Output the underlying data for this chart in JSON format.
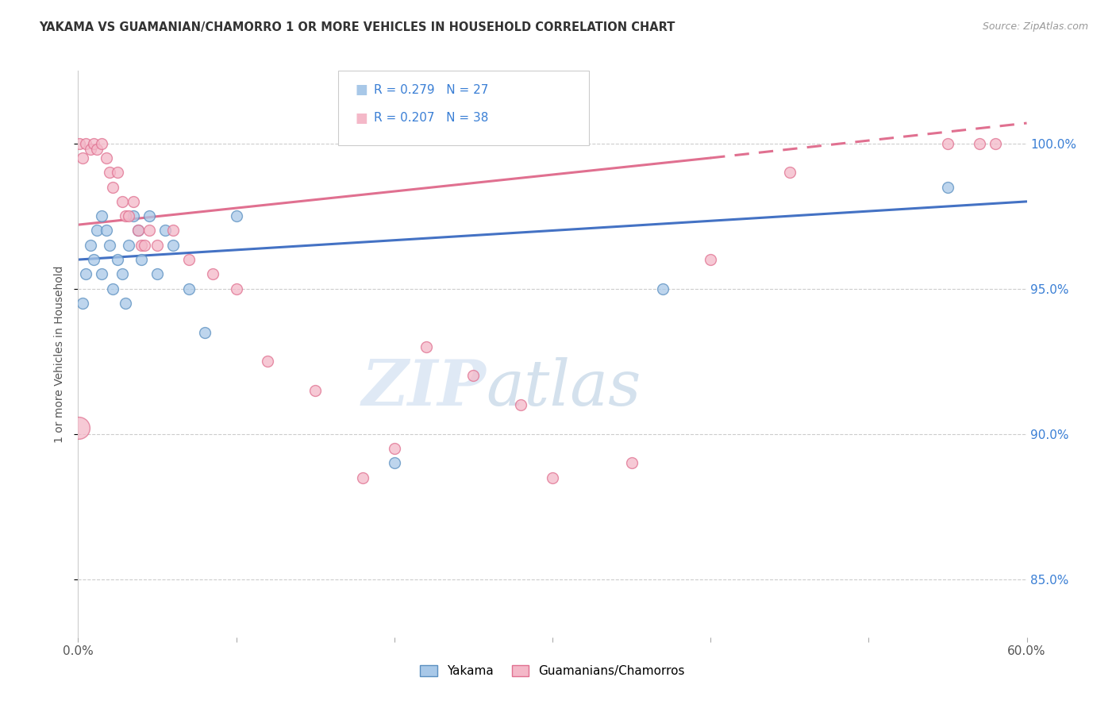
{
  "title": "YAKAMA VS GUAMANIAN/CHAMORRO 1 OR MORE VEHICLES IN HOUSEHOLD CORRELATION CHART",
  "source": "Source: ZipAtlas.com",
  "ylabel": "1 or more Vehicles in Household",
  "ytick_vals": [
    85.0,
    90.0,
    95.0,
    100.0
  ],
  "xmin": 0.0,
  "xmax": 60.0,
  "ymin": 83.0,
  "ymax": 102.5,
  "legend_blue_r": "R = 0.279",
  "legend_blue_n": "N = 27",
  "legend_pink_r": "R = 0.207",
  "legend_pink_n": "N = 38",
  "legend_label_blue": "Yakama",
  "legend_label_pink": "Guamanians/Chamorros",
  "blue_scatter_color": "#A8C8E8",
  "pink_scatter_color": "#F4B8C8",
  "blue_edge_color": "#5A8FC0",
  "pink_edge_color": "#E07090",
  "blue_line_color": "#4472C4",
  "pink_line_color": "#E07090",
  "r_n_color": "#3A7FD5",
  "watermark_color": "#D8E8F5",
  "yakama_x": [
    0.3,
    0.5,
    0.8,
    1.0,
    1.2,
    1.5,
    1.5,
    1.8,
    2.0,
    2.2,
    2.5,
    2.8,
    3.0,
    3.2,
    3.5,
    3.8,
    4.0,
    4.5,
    5.0,
    5.5,
    6.0,
    7.0,
    8.0,
    10.0,
    20.0,
    37.0,
    55.0
  ],
  "yakama_y": [
    94.5,
    95.5,
    96.5,
    96.0,
    97.0,
    97.5,
    95.5,
    97.0,
    96.5,
    95.0,
    96.0,
    95.5,
    94.5,
    96.5,
    97.5,
    97.0,
    96.0,
    97.5,
    95.5,
    97.0,
    96.5,
    95.0,
    93.5,
    97.5,
    89.0,
    95.0,
    98.5
  ],
  "guam_x": [
    0.1,
    0.3,
    0.5,
    0.8,
    1.0,
    1.2,
    1.5,
    1.8,
    2.0,
    2.2,
    2.5,
    2.8,
    3.0,
    3.2,
    3.5,
    3.8,
    4.0,
    4.2,
    4.5,
    5.0,
    6.0,
    7.0,
    8.5,
    10.0,
    12.0,
    15.0,
    18.0,
    20.0,
    22.0,
    25.0,
    28.0,
    30.0,
    35.0,
    40.0,
    45.0,
    55.0,
    57.0,
    58.0
  ],
  "guam_y": [
    100.0,
    99.5,
    100.0,
    99.8,
    100.0,
    99.8,
    100.0,
    99.5,
    99.0,
    98.5,
    99.0,
    98.0,
    97.5,
    97.5,
    98.0,
    97.0,
    96.5,
    96.5,
    97.0,
    96.5,
    97.0,
    96.0,
    95.5,
    95.0,
    92.5,
    91.5,
    88.5,
    89.5,
    93.0,
    92.0,
    91.0,
    88.5,
    89.0,
    96.0,
    99.0,
    100.0,
    100.0,
    100.0
  ],
  "blue_trendline_x0": 0.0,
  "blue_trendline_y0": 96.0,
  "blue_trendline_x1": 60.0,
  "blue_trendline_y1": 98.0,
  "pink_solid_x0": 0.0,
  "pink_solid_y0": 97.2,
  "pink_solid_x1": 40.0,
  "pink_solid_y1": 99.5,
  "pink_dash_x0": 40.0,
  "pink_dash_y0": 99.5,
  "pink_dash_x1": 60.0,
  "pink_dash_y1": 100.7
}
